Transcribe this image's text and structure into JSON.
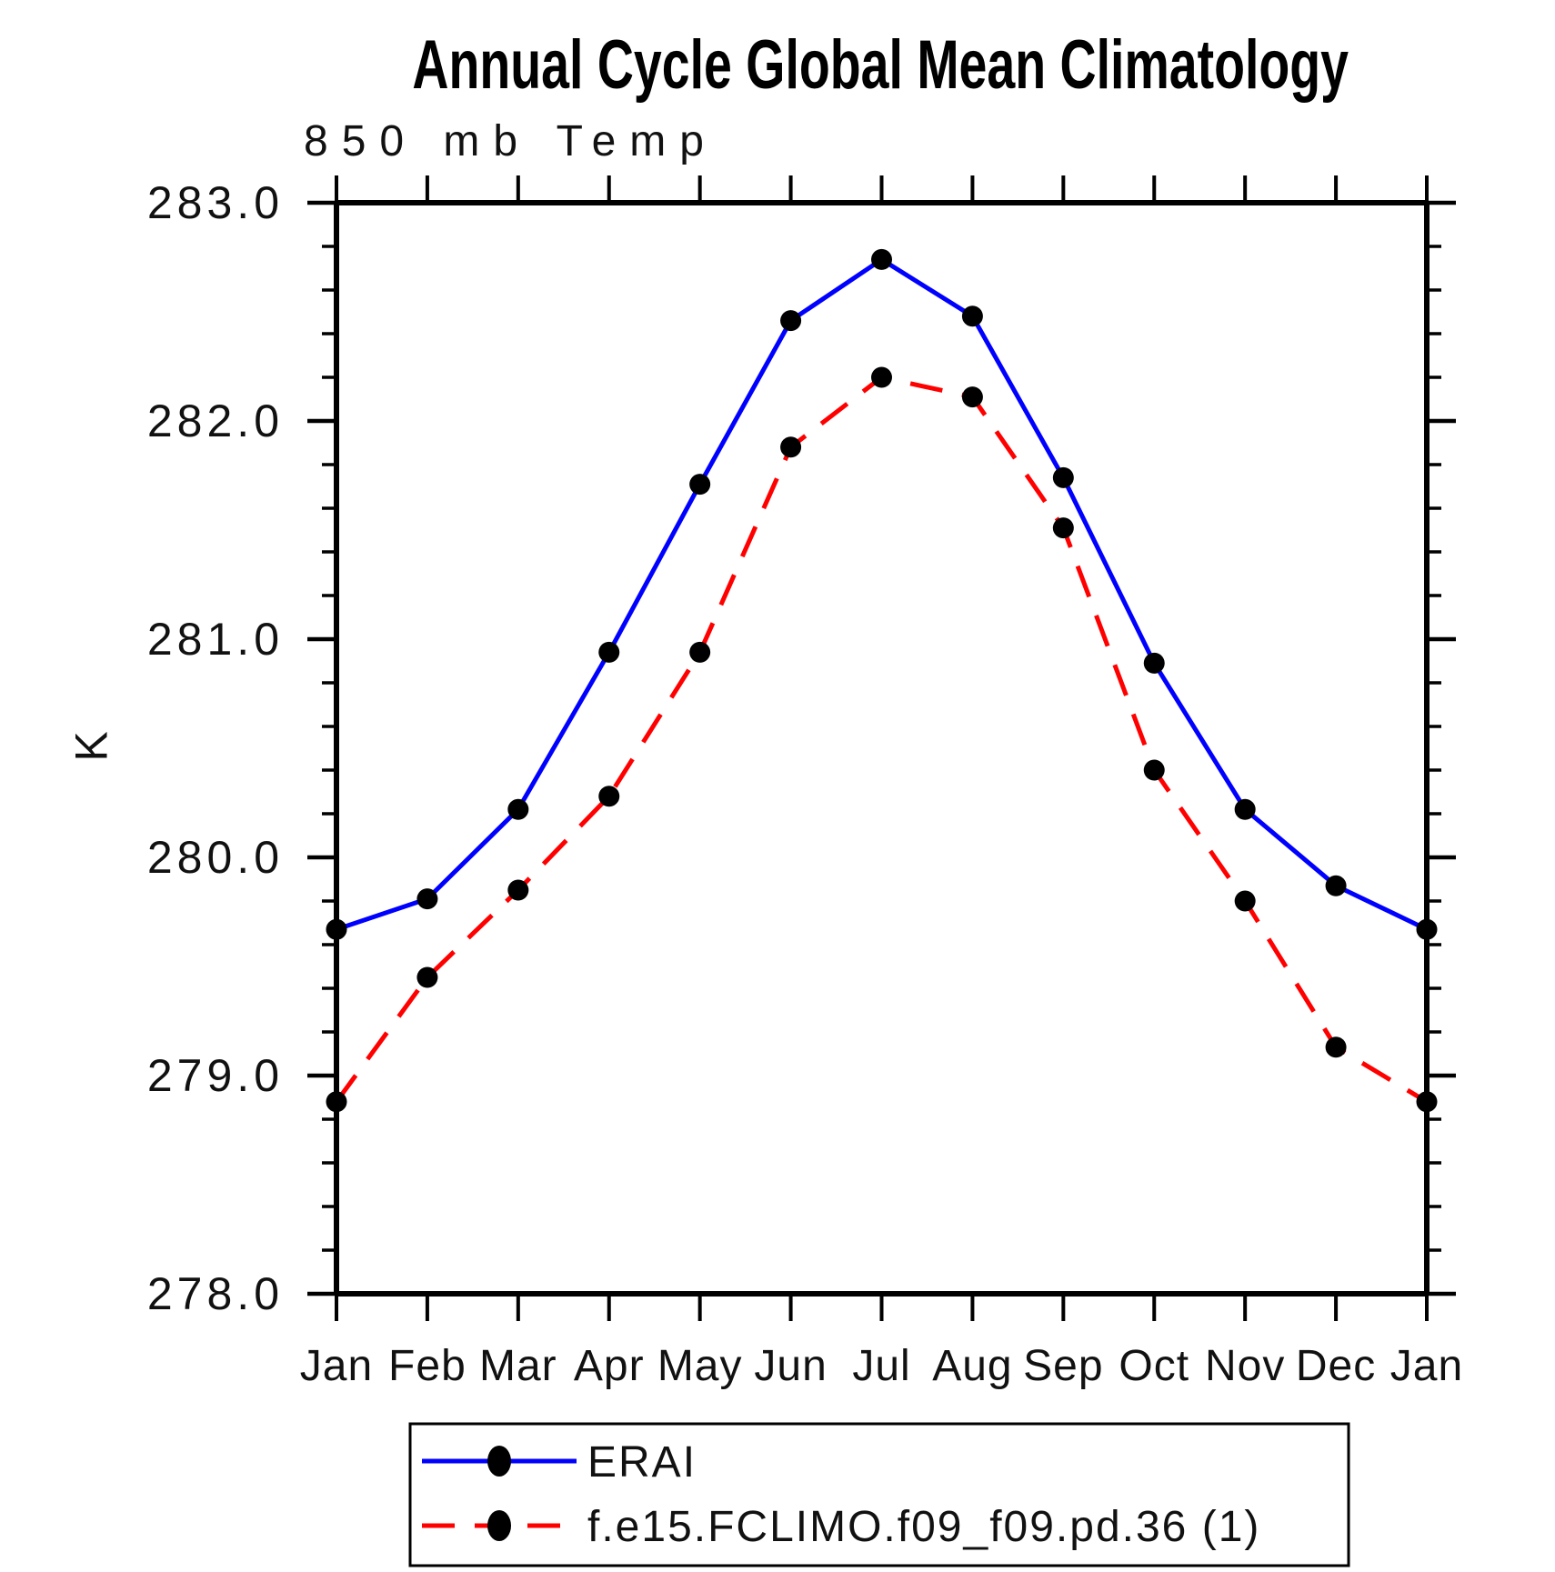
{
  "chart_data": {
    "type": "line",
    "title": "Annual Cycle Global Mean Climatology",
    "subtitle": "850 mb Temp",
    "ylabel": "K",
    "x_tick_labels": [
      "Jan",
      "Feb",
      "Mar",
      "Apr",
      "May",
      "Jun",
      "Jul",
      "Aug",
      "Sep",
      "Oct",
      "Nov",
      "Dec",
      "Jan"
    ],
    "y_ticks": [
      278.0,
      279.0,
      280.0,
      281.0,
      282.0,
      283.0
    ],
    "y_tick_labels": [
      "278.0",
      "279.0",
      "280.0",
      "281.0",
      "282.0",
      "283.0"
    ],
    "ylim": [
      278.0,
      283.0
    ],
    "y_minor_tick_step": 0.2,
    "grid": false,
    "legend_position": "bottom",
    "axis_color": "#000000",
    "series": [
      {
        "name": "ERAI",
        "color": "#0000ff",
        "line_style": "solid",
        "marker": "filled-circle",
        "marker_color": "#000000",
        "values": [
          279.67,
          279.81,
          280.22,
          280.94,
          281.71,
          282.46,
          282.74,
          282.48,
          281.74,
          280.89,
          280.22,
          279.87,
          279.67
        ]
      },
      {
        "name": "f.e15.FCLIMO.f09_f09.pd.36 (1)",
        "color": "#ff0000",
        "line_style": "dashed",
        "marker": "filled-circle",
        "marker_color": "#000000",
        "values": [
          278.88,
          279.45,
          279.85,
          280.28,
          280.94,
          281.88,
          282.2,
          282.11,
          281.51,
          280.4,
          279.8,
          279.13,
          278.88
        ]
      }
    ]
  }
}
